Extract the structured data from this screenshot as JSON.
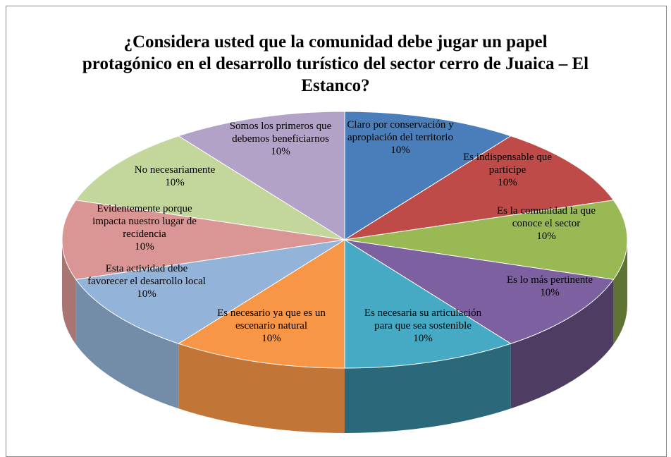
{
  "chart_data": {
    "type": "pie3d",
    "title": "¿Considera usted que la comunidad debe jugar un papel protagónico en el desarrollo turístico del sector cerro de Juaica – El Estanco?",
    "categories": [
      "Claro por conservación y apropiación del territorio",
      "Es indispensable que participe",
      "Es la comunidad la que conoce el sector",
      "Es lo más pertinente",
      "Es necesaria su articulación para que sea sostenible",
      "Es necesario ya que es un escenario natural",
      "Esta actividad debe favorecer el desarrollo local",
      "Evidentemente porque impacta nuestro lugar de recidencia",
      "No necesariamente",
      "Somos los primeros que debemos beneficiarnos"
    ],
    "values": [
      10,
      10,
      10,
      10,
      10,
      10,
      10,
      10,
      10,
      10
    ],
    "value_labels": [
      "10%",
      "10%",
      "10%",
      "10%",
      "10%",
      "10%",
      "10%",
      "10%",
      "10%",
      "10%"
    ],
    "colors": [
      "#4a7ebb",
      "#be4b48",
      "#98b954",
      "#7d60a0",
      "#46aac5",
      "#f79646",
      "#94b3d8",
      "#d99694",
      "#c3d69b",
      "#b3a2c7"
    ]
  }
}
